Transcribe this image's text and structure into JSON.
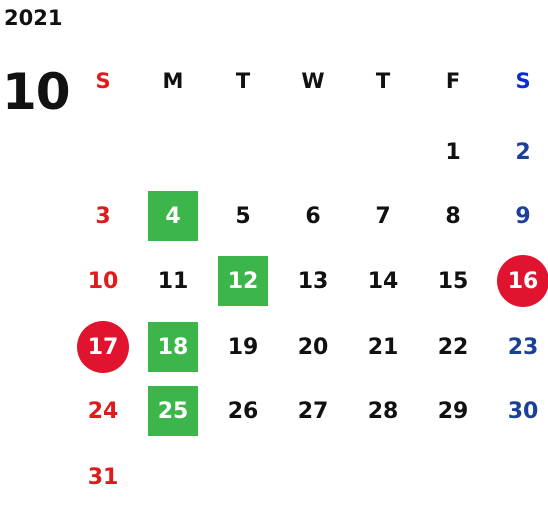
{
  "calendar": {
    "year": "2021",
    "month": "10",
    "weekdays": [
      "S",
      "M",
      "T",
      "W",
      "T",
      "F",
      "S"
    ],
    "colors": {
      "sunday": "#e01b1b",
      "saturday": "#1c3f97",
      "saturday_header": "#0a2cd4",
      "green_highlight": "#3cb54a",
      "red_circle": "#e0142e"
    },
    "weeks": [
      [
        "",
        "",
        "",
        "",
        "",
        "1",
        "2"
      ],
      [
        "3",
        "4",
        "5",
        "6",
        "7",
        "8",
        "9"
      ],
      [
        "10",
        "11",
        "12",
        "13",
        "14",
        "15",
        "16"
      ],
      [
        "17",
        "18",
        "19",
        "20",
        "21",
        "22",
        "23"
      ],
      [
        "24",
        "25",
        "26",
        "27",
        "28",
        "29",
        "30"
      ],
      [
        "31",
        "",
        "",
        "",
        "",
        "",
        ""
      ]
    ],
    "green_highlighted_days": [
      "4",
      "12",
      "18",
      "25"
    ],
    "red_circled_days": [
      "16",
      "17"
    ]
  }
}
